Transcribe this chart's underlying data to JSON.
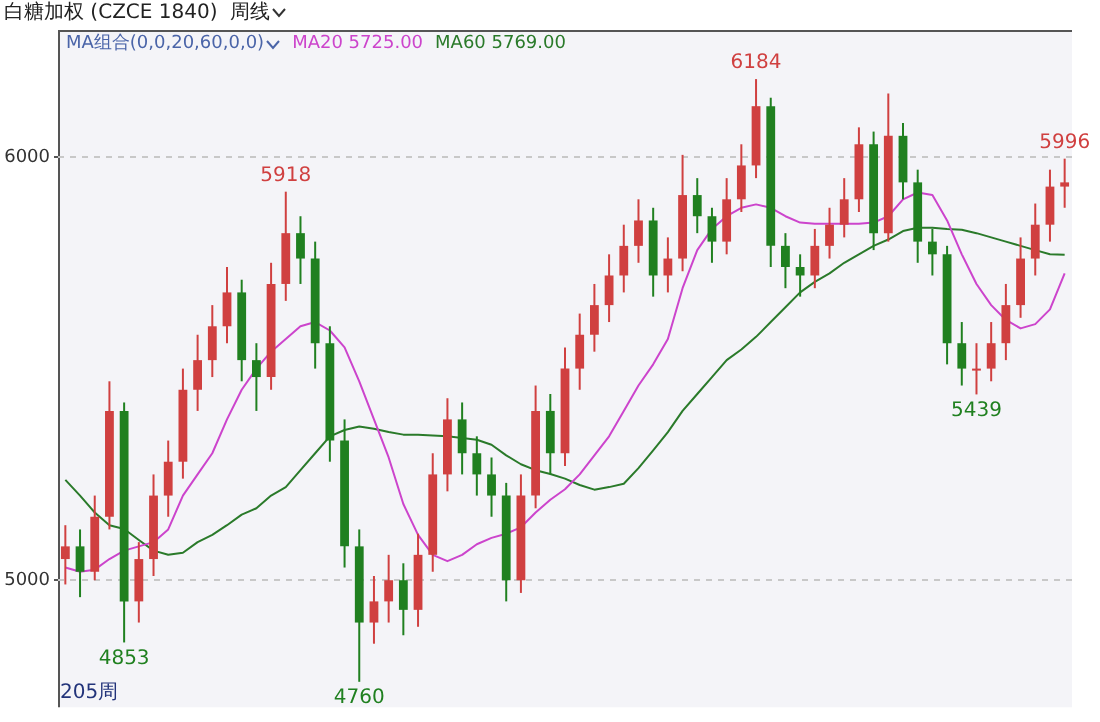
{
  "chart_data": {
    "type": "candlestick",
    "title": "白糖加权 (CZCE 1840)",
    "subtitle": "周线",
    "legend_title": "MA组合(0,0,20,60,0,0)",
    "legend": "top left",
    "categories": [
      null,
      null,
      null,
      null,
      null,
      null,
      null,
      null,
      null,
      null,
      null,
      null,
      null,
      null,
      null,
      null,
      null,
      null,
      null,
      null,
      null,
      null,
      null,
      null,
      null,
      null,
      null,
      null,
      null,
      null,
      null,
      null,
      null,
      null,
      null,
      null,
      null,
      null,
      null,
      null,
      null,
      null,
      null,
      null,
      null,
      null,
      null,
      null,
      null,
      null,
      null,
      null,
      null,
      null,
      null,
      null,
      null,
      null,
      null,
      null,
      null,
      null,
      null,
      null,
      null,
      null,
      null,
      null,
      null
    ],
    "ohlc": [
      [
        5050,
        5130,
        4990,
        5080
      ],
      [
        5080,
        5120,
        4960,
        5020
      ],
      [
        5020,
        5200,
        5000,
        5150
      ],
      [
        5150,
        5470,
        5120,
        5400
      ],
      [
        5400,
        5420,
        4853,
        4950
      ],
      [
        4950,
        5090,
        4900,
        5050
      ],
      [
        5050,
        5250,
        5010,
        5200
      ],
      [
        5200,
        5330,
        5150,
        5280
      ],
      [
        5280,
        5500,
        5240,
        5450
      ],
      [
        5450,
        5580,
        5400,
        5520
      ],
      [
        5520,
        5650,
        5480,
        5600
      ],
      [
        5600,
        5740,
        5560,
        5680
      ],
      [
        5680,
        5710,
        5470,
        5520
      ],
      [
        5520,
        5560,
        5400,
        5480
      ],
      [
        5480,
        5750,
        5450,
        5700
      ],
      [
        5700,
        5918,
        5660,
        5820
      ],
      [
        5820,
        5860,
        5700,
        5760
      ],
      [
        5760,
        5800,
        5500,
        5560
      ],
      [
        5560,
        5600,
        5280,
        5330
      ],
      [
        5330,
        5380,
        5030,
        5080
      ],
      [
        5080,
        5120,
        4760,
        4900
      ],
      [
        4900,
        5010,
        4850,
        4950
      ],
      [
        4950,
        5060,
        4900,
        5000
      ],
      [
        5000,
        5040,
        4870,
        4930
      ],
      [
        4930,
        5110,
        4890,
        5060
      ],
      [
        5060,
        5300,
        5020,
        5250
      ],
      [
        5250,
        5430,
        5210,
        5380
      ],
      [
        5380,
        5420,
        5250,
        5300
      ],
      [
        5300,
        5340,
        5200,
        5250
      ],
      [
        5250,
        5290,
        5150,
        5200
      ],
      [
        5200,
        5230,
        4950,
        5000
      ],
      [
        5000,
        5250,
        4970,
        5200
      ],
      [
        5200,
        5460,
        5170,
        5400
      ],
      [
        5400,
        5440,
        5250,
        5300
      ],
      [
        5300,
        5550,
        5270,
        5500
      ],
      [
        5500,
        5630,
        5450,
        5580
      ],
      [
        5580,
        5700,
        5540,
        5650
      ],
      [
        5650,
        5770,
        5610,
        5720
      ],
      [
        5720,
        5840,
        5680,
        5790
      ],
      [
        5790,
        5900,
        5750,
        5850
      ],
      [
        5850,
        5880,
        5670,
        5720
      ],
      [
        5720,
        5810,
        5680,
        5760
      ],
      [
        5760,
        6005,
        5730,
        5910
      ],
      [
        5910,
        5950,
        5820,
        5860
      ],
      [
        5860,
        5880,
        5750,
        5800
      ],
      [
        5800,
        5950,
        5770,
        5900
      ],
      [
        5900,
        6030,
        5870,
        5980
      ],
      [
        5980,
        6184,
        5950,
        6120
      ],
      [
        6120,
        6140,
        5740,
        5790
      ],
      [
        5790,
        5820,
        5690,
        5740
      ],
      [
        5740,
        5770,
        5670,
        5720
      ],
      [
        5720,
        5830,
        5690,
        5790
      ],
      [
        5790,
        5880,
        5760,
        5840
      ],
      [
        5840,
        5950,
        5810,
        5900
      ],
      [
        5900,
        6070,
        5870,
        6030
      ],
      [
        6030,
        6060,
        5780,
        5820
      ],
      [
        5820,
        6150,
        5800,
        6050
      ],
      [
        6050,
        6080,
        5900,
        5940
      ],
      [
        5940,
        5970,
        5750,
        5800
      ],
      [
        5800,
        5830,
        5720,
        5770
      ],
      [
        5770,
        5790,
        5510,
        5560
      ],
      [
        5560,
        5610,
        5460,
        5500
      ],
      [
        5500,
        5560,
        5439,
        5500
      ],
      [
        5500,
        5610,
        5470,
        5560
      ],
      [
        5560,
        5700,
        5520,
        5650
      ],
      [
        5650,
        5810,
        5620,
        5760
      ],
      [
        5760,
        5890,
        5720,
        5840
      ],
      [
        5840,
        5970,
        5800,
        5930
      ],
      [
        5930,
        5996,
        5880,
        5940
      ]
    ],
    "series": [
      {
        "name": "MA20 5725.00",
        "type": "line",
        "color": "#cc44cc",
        "values": [
          5030,
          5020,
          5025,
          5050,
          5070,
          5080,
          5090,
          5120,
          5200,
          5250,
          5300,
          5380,
          5450,
          5500,
          5540,
          5570,
          5600,
          5610,
          5590,
          5550,
          5470,
          5380,
          5290,
          5180,
          5107,
          5060,
          5045,
          5060,
          5085,
          5100,
          5110,
          5125,
          5160,
          5190,
          5215,
          5250,
          5295,
          5340,
          5400,
          5460,
          5510,
          5570,
          5690,
          5780,
          5830,
          5860,
          5880,
          5888,
          5880,
          5860,
          5845,
          5842,
          5842,
          5842,
          5842,
          5845,
          5860,
          5900,
          5916,
          5910,
          5850,
          5770,
          5700,
          5650,
          5615,
          5595,
          5605,
          5640,
          5725
        ]
      },
      {
        "name": "MA60 5769.00",
        "type": "line",
        "color": "#2a7a2a",
        "values": [
          5237,
          5200,
          5160,
          5130,
          5121,
          5095,
          5070,
          5060,
          5065,
          5090,
          5107,
          5130,
          5155,
          5170,
          5200,
          5220,
          5260,
          5300,
          5340,
          5355,
          5363,
          5358,
          5350,
          5344,
          5344,
          5342,
          5340,
          5336,
          5332,
          5320,
          5295,
          5274,
          5260,
          5251,
          5240,
          5225,
          5214,
          5220,
          5228,
          5265,
          5307,
          5350,
          5400,
          5440,
          5480,
          5520,
          5545,
          5575,
          5610,
          5645,
          5680,
          5705,
          5725,
          5750,
          5770,
          5790,
          5805,
          5825,
          5833,
          5833,
          5830,
          5828,
          5820,
          5810,
          5800,
          5790,
          5780,
          5770,
          5769
        ]
      }
    ],
    "ylim": [
      4700,
      6300
    ],
    "yticks": [
      5000,
      6000
    ],
    "grid": "y",
    "tick_labels": "y",
    "annotations": [
      {
        "text": "5918",
        "y": 5918
      },
      {
        "text": "6184",
        "y": 6184
      },
      {
        "text": "5996",
        "y": 5996
      },
      {
        "text": "4853",
        "y": 4853
      },
      {
        "text": "4760",
        "y": 4760
      },
      {
        "text": "5439",
        "y": 5439
      },
      "205周"
    ]
  }
}
